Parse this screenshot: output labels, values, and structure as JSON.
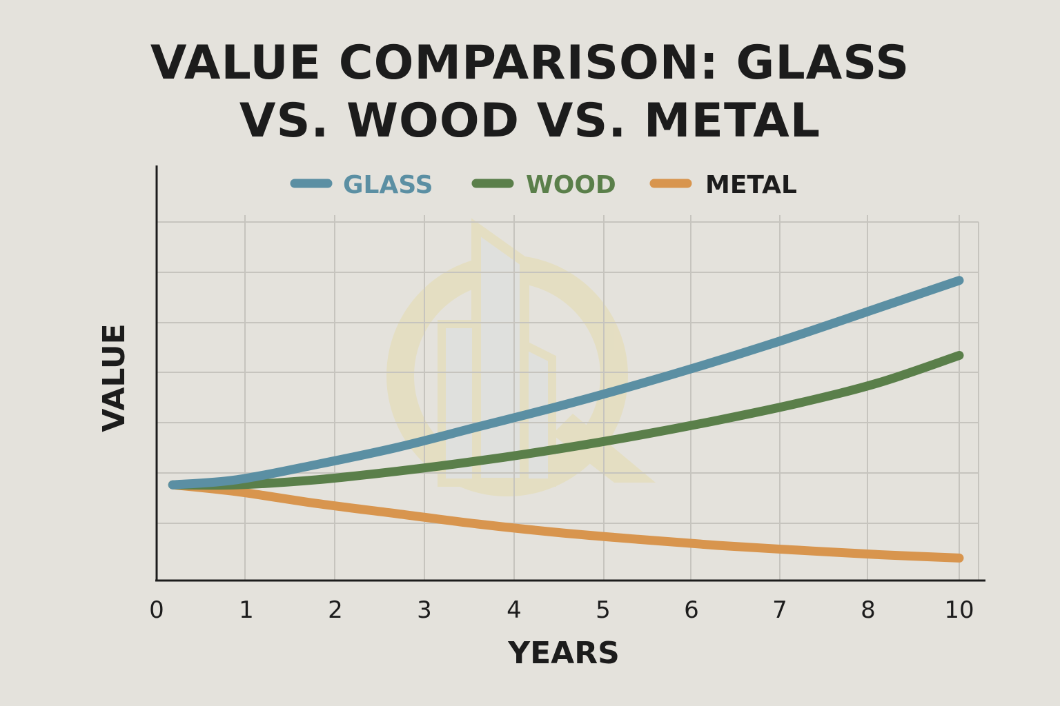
{
  "chart_data": {
    "type": "line",
    "title_line1": "VALUE COMPARISON: GLASS",
    "title_line2": "VS. WOOD VS. METAL",
    "xlabel": "YEARS",
    "ylabel": "VALUE",
    "x_ticks": [
      "0",
      "1",
      "2",
      "3",
      "4",
      "5",
      "6",
      "7",
      "8",
      "10"
    ],
    "xlim": [
      0,
      10
    ],
    "ylim": [
      0,
      10
    ],
    "grid": true,
    "legend_position": "top",
    "series": [
      {
        "name": "GLASS",
        "color": "#5b8fa3",
        "x": [
          0.2,
          1,
          2,
          3,
          4,
          5,
          6,
          7,
          8,
          9,
          10
        ],
        "y": [
          2,
          2.15,
          2.6,
          3.1,
          3.7,
          4.3,
          4.95,
          5.65,
          6.4,
          7.2,
          8.0
        ]
      },
      {
        "name": "WOOD",
        "color": "#5a7f4a",
        "x": [
          0.2,
          1,
          2,
          3,
          4,
          5,
          6,
          7,
          8,
          9,
          10
        ],
        "y": [
          2,
          2.0,
          2.15,
          2.4,
          2.7,
          3.05,
          3.45,
          3.9,
          4.4,
          5.0,
          5.8
        ]
      },
      {
        "name": "METAL",
        "color": "#d8954e",
        "x": [
          0.2,
          1,
          2,
          3,
          4,
          5,
          6,
          7,
          8,
          9,
          10
        ],
        "y": [
          2,
          1.8,
          1.45,
          1.15,
          0.85,
          0.6,
          0.4,
          0.22,
          0.08,
          -0.05,
          -0.15
        ]
      }
    ]
  }
}
